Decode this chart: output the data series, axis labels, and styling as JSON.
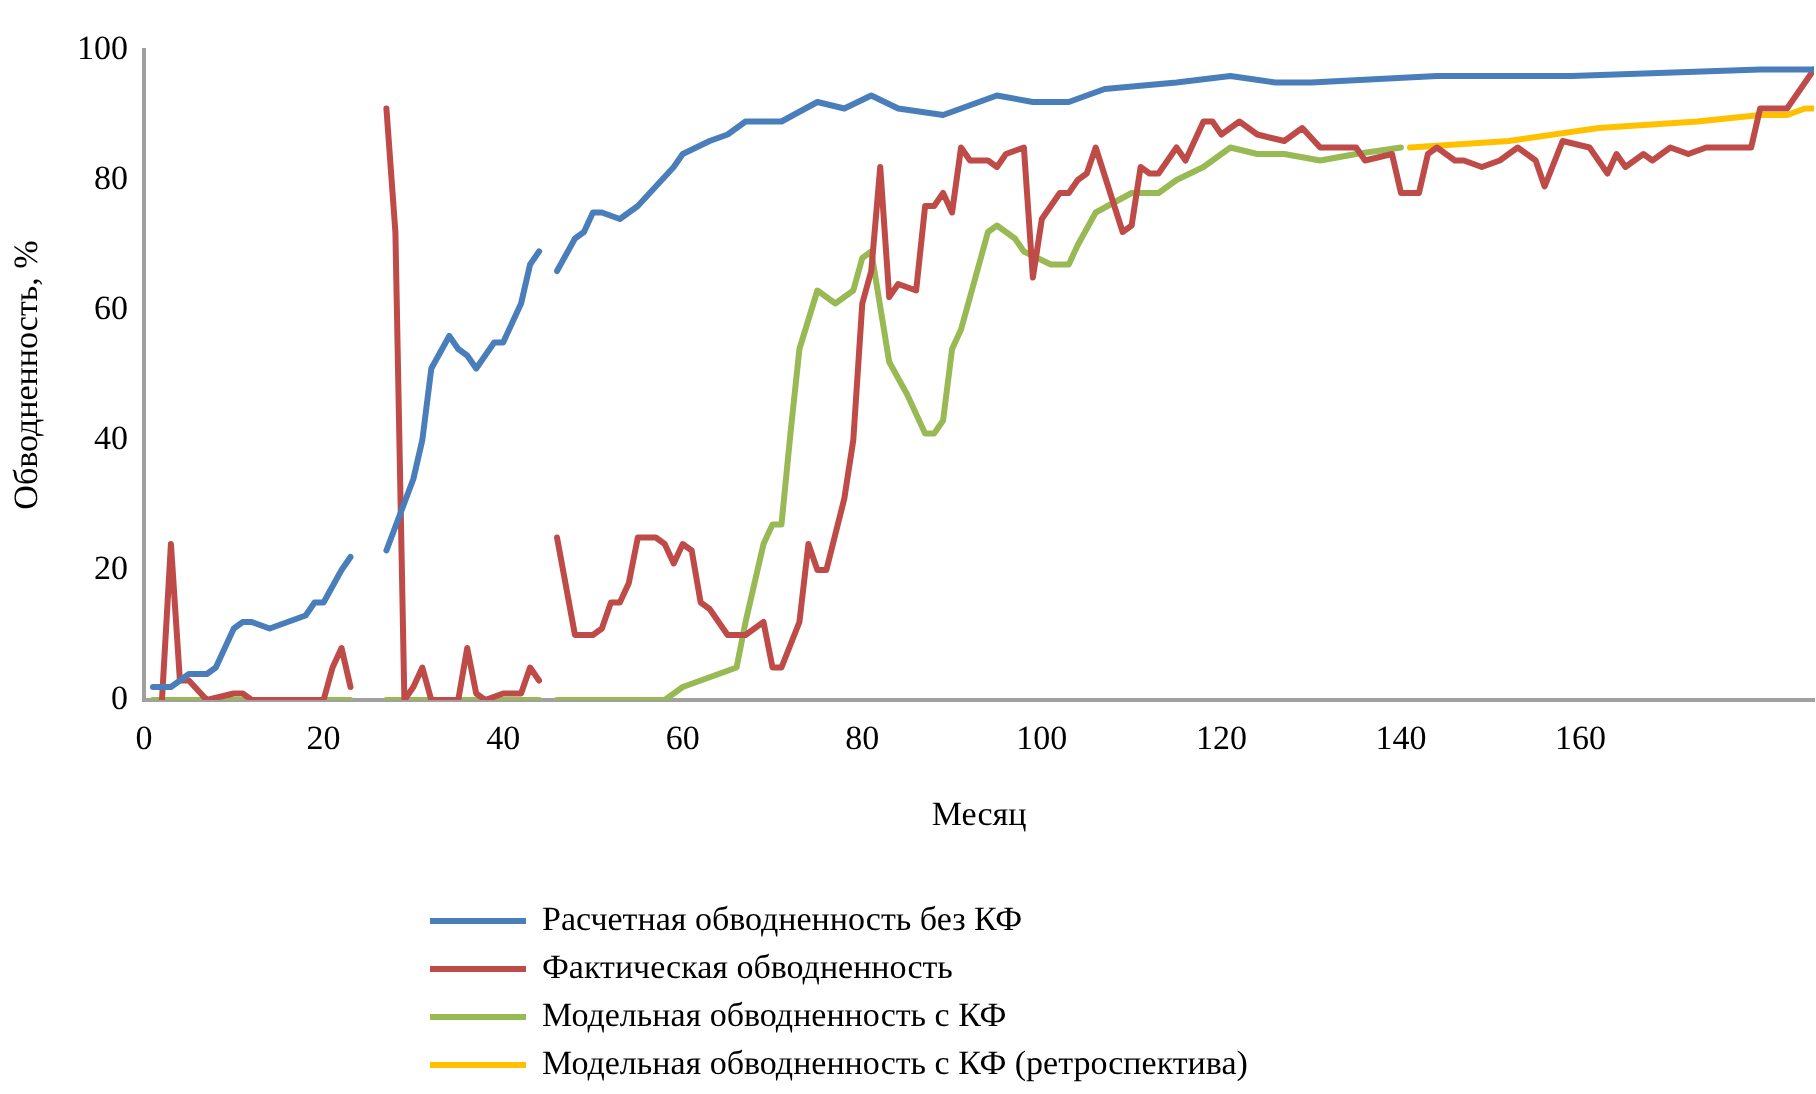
{
  "chart_data": {
    "type": "line",
    "xlabel": "Месяц",
    "ylabel": "Обводненность, %",
    "xlim": [
      0,
      186
    ],
    "xticks": [
      0,
      20,
      40,
      60,
      80,
      100,
      120,
      140,
      160
    ],
    "ylim": [
      0,
      100
    ],
    "yticks": [
      0,
      20,
      40,
      60,
      80,
      100
    ],
    "legend": "bottom",
    "series": [
      {
        "name": "Расчетная обводненность без КФ",
        "color": "#4a7ebb",
        "x": [
          1,
          3,
          5,
          7,
          8,
          10,
          11,
          12,
          14,
          16,
          18,
          19,
          20,
          22,
          23,
          25,
          27,
          30,
          31,
          32,
          34,
          35,
          36,
          37,
          39,
          40,
          42,
          43,
          44,
          45,
          46,
          48,
          49,
          50,
          51,
          53,
          55,
          57,
          59,
          60,
          63,
          65,
          67,
          71,
          75,
          78,
          81,
          84,
          89,
          91,
          95,
          99,
          103,
          107,
          115,
          121,
          126,
          130,
          144,
          159,
          180,
          186
        ],
        "values": [
          2,
          2,
          4,
          4,
          5,
          11,
          12,
          12,
          11,
          12,
          13,
          15,
          15,
          20,
          22,
          null,
          23,
          34,
          40,
          51,
          56,
          54,
          53,
          51,
          55,
          55,
          61,
          67,
          69,
          null,
          66,
          71,
          72,
          75,
          75,
          74,
          76,
          79,
          82,
          84,
          86,
          87,
          89,
          89,
          92,
          91,
          93,
          91,
          90,
          91,
          93,
          92,
          92,
          94,
          95,
          96,
          95,
          95,
          96,
          96,
          97,
          97
        ]
      },
      {
        "name": "Фактическая обводненность",
        "color": "#be4b48",
        "x": [
          2,
          3,
          4,
          5,
          7,
          10,
          11,
          12,
          20,
          21,
          22,
          23,
          25,
          27,
          28,
          29,
          30,
          31,
          32,
          35,
          36,
          37,
          38,
          40,
          42,
          43,
          44,
          45,
          46,
          48,
          50,
          51,
          52,
          53,
          54,
          55,
          57,
          58,
          59,
          60,
          61,
          62,
          63,
          65,
          67,
          69,
          70,
          71,
          73,
          74,
          75,
          76,
          78,
          79,
          80,
          81,
          82,
          83,
          84,
          86,
          87,
          88,
          89,
          90,
          91,
          92,
          94,
          95,
          96,
          98,
          99,
          100,
          102,
          103,
          104,
          105,
          106,
          109,
          110,
          111,
          112,
          113,
          115,
          116,
          118,
          119,
          120,
          122,
          124,
          127,
          129,
          131,
          135,
          136,
          139,
          140,
          142,
          143,
          144,
          146,
          147,
          149,
          151,
          153,
          155,
          156,
          158,
          161,
          163,
          164,
          165,
          167,
          168,
          170,
          172,
          174,
          177,
          179,
          180,
          183,
          185,
          186
        ],
        "values": [
          0,
          24,
          3,
          3,
          0,
          1,
          1,
          0,
          0,
          5,
          8,
          2,
          null,
          91,
          72,
          0,
          2,
          5,
          0,
          0,
          8,
          1,
          0,
          1,
          1,
          5,
          3,
          null,
          25,
          10,
          10,
          11,
          15,
          15,
          18,
          25,
          25,
          24,
          21,
          24,
          23,
          15,
          14,
          10,
          10,
          12,
          5,
          5,
          12,
          24,
          20,
          20,
          31,
          40,
          61,
          66,
          82,
          62,
          64,
          63,
          76,
          76,
          78,
          75,
          85,
          83,
          83,
          82,
          84,
          85,
          65,
          74,
          78,
          78,
          80,
          81,
          85,
          72,
          73,
          82,
          81,
          81,
          85,
          83,
          89,
          89,
          87,
          89,
          87,
          86,
          88,
          85,
          85,
          83,
          84,
          78,
          78,
          84,
          85,
          83,
          83,
          82,
          83,
          85,
          83,
          79,
          86,
          85,
          81,
          84,
          82,
          84,
          83,
          85,
          84,
          85,
          85,
          85,
          91,
          91,
          95,
          97
        ]
      },
      {
        "name": "Модельная обводненность с КФ",
        "color": "#98b954",
        "x": [
          1,
          23,
          25,
          27,
          44,
          45,
          46,
          58,
          60,
          62,
          64,
          66,
          67,
          69,
          70,
          71,
          72,
          73,
          75,
          77,
          79,
          80,
          81,
          83,
          85,
          87,
          88,
          89,
          90,
          91,
          94,
          95,
          97,
          98,
          101,
          103,
          104,
          106,
          110,
          113,
          115,
          118,
          121,
          124,
          127,
          131,
          135,
          140
        ],
        "values": [
          0,
          0,
          null,
          0,
          0,
          null,
          0,
          0,
          2,
          3,
          4,
          5,
          12,
          24,
          27,
          27,
          41,
          54,
          63,
          61,
          63,
          68,
          69,
          52,
          47,
          41,
          41,
          43,
          54,
          57,
          72,
          73,
          71,
          69,
          67,
          67,
          70,
          75,
          78,
          78,
          80,
          82,
          85,
          84,
          84,
          83,
          84,
          85
        ]
      },
      {
        "name": "Модельная обводненность с КФ (ретроспектива)",
        "color": "#ffc000",
        "x": [
          141,
          152,
          162,
          173,
          180,
          183,
          185,
          186
        ],
        "values": [
          85,
          86,
          88,
          89,
          90,
          90,
          91,
          91
        ]
      }
    ]
  }
}
